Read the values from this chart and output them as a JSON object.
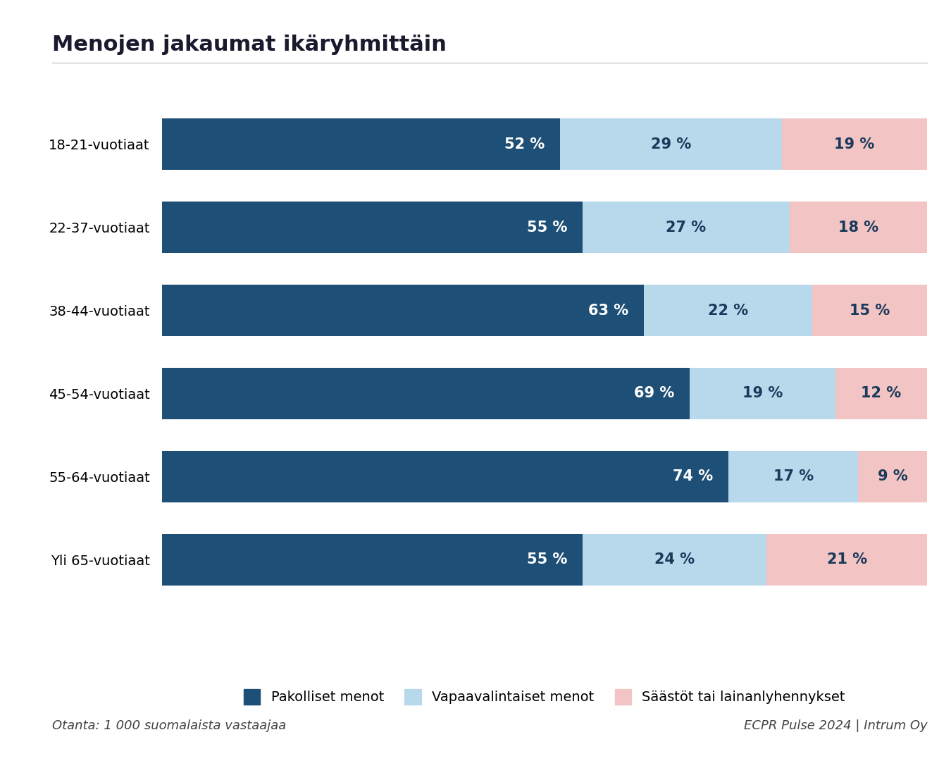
{
  "title": "Menojen jakaumat ikäryhmittäin",
  "categories": [
    "18-21-vuotiaat",
    "22-37-vuotiaat",
    "38-44-vuotiaat",
    "45-54-vuotiaat",
    "55-64-vuotiaat",
    "Yli 65-vuotiaat"
  ],
  "pakolliset": [
    52,
    55,
    63,
    69,
    74,
    55
  ],
  "vapaavalintaiset": [
    29,
    27,
    22,
    19,
    17,
    24
  ],
  "saastot": [
    19,
    18,
    15,
    12,
    9,
    21
  ],
  "color_pakolliset": "#1e4f76",
  "color_vapaavalintaiset": "#b8d9ec",
  "color_saastot": "#f2c4c4",
  "legend_labels": [
    "Pakolliset menot",
    "Vapaavalintaiset menot",
    "Säästöt tai lainanlyhennykset"
  ],
  "footnote_left": "Otanta: 1 000 suomalaista vastaajaa",
  "footnote_right": "ECPR Pulse 2024 | Intrum Oy",
  "background_color": "#ffffff",
  "bar_height": 0.62,
  "title_fontsize": 22,
  "label_fontsize": 14,
  "tick_fontsize": 14,
  "bar_text_fontsize": 15,
  "footnote_fontsize": 13
}
